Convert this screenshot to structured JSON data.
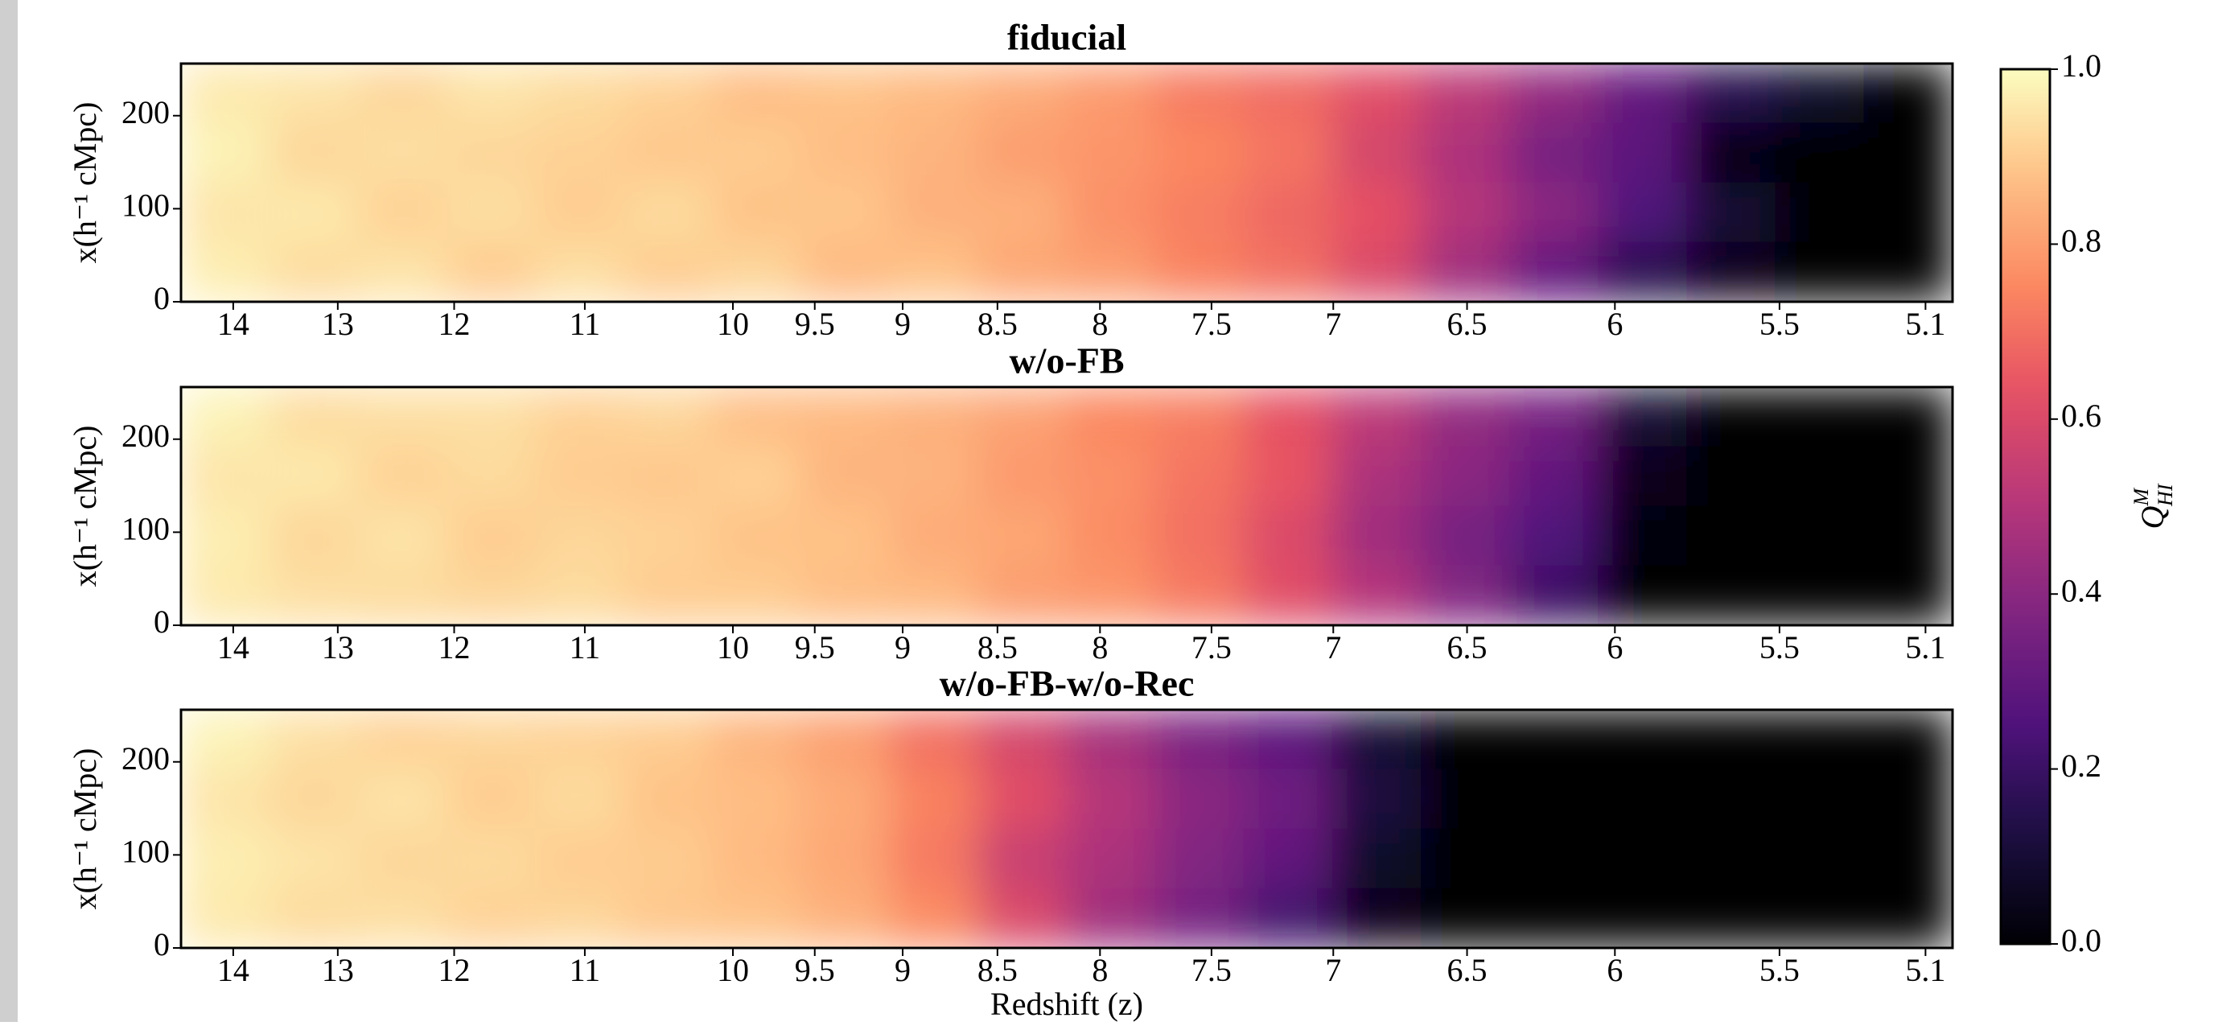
{
  "chart_data": [
    {
      "type": "heatmap",
      "title": "fiducial",
      "ylabel": "x(h⁻¹ cMpc)",
      "colormap": "magma",
      "xscale": "comoving",
      "xlim": [
        14.54,
        5.03
      ],
      "xticks": [
        14,
        13,
        12,
        11,
        10,
        9.5,
        9,
        8.5,
        8,
        7.5,
        7,
        6.5,
        6,
        5.5,
        5.1
      ],
      "ylim": [
        0,
        256
      ],
      "yticks": [
        0,
        100,
        200
      ],
      "values": [
        [
          0.96,
          0.95,
          0.92,
          0.95,
          0.93,
          0.91,
          0.87,
          0.88,
          0.86,
          0.83,
          0.79,
          0.72,
          0.69,
          0.62,
          0.52,
          0.42,
          0.3,
          0.15,
          0.08,
          0
        ],
        [
          0.98,
          0.92,
          0.94,
          0.92,
          0.91,
          0.89,
          0.9,
          0.87,
          0.85,
          0.8,
          0.78,
          0.75,
          0.71,
          0.58,
          0.48,
          0.35,
          0.28,
          0.02,
          0,
          0
        ],
        [
          0.95,
          0.96,
          0.91,
          0.94,
          0.9,
          0.93,
          0.88,
          0.89,
          0.84,
          0.84,
          0.77,
          0.73,
          0.68,
          0.63,
          0.5,
          0.4,
          0.25,
          0.1,
          0,
          0
        ],
        [
          0.97,
          0.93,
          0.95,
          0.9,
          0.94,
          0.9,
          0.92,
          0.86,
          0.88,
          0.82,
          0.8,
          0.74,
          0.7,
          0.6,
          0.45,
          0.3,
          0.15,
          0.05,
          0,
          0
        ]
      ],
      "colorbar": {
        "label": {
          "base": "Q",
          "sup": "M",
          "sub": "HI"
        },
        "lim": [
          0,
          1
        ],
        "ticks": [
          {
            "value": 0,
            "label": "0.0"
          },
          0.2,
          0.4,
          0.6,
          0.8,
          {
            "value": 1,
            "label": "1.0"
          }
        ]
      }
    },
    {
      "type": "heatmap",
      "title": "w/o-FB",
      "ylabel": "x(h⁻¹ cMpc)",
      "colormap": "magma",
      "xscale": "comoving",
      "xlim": [
        14.54,
        5.03
      ],
      "xticks": [
        14,
        13,
        12,
        11,
        10,
        9.5,
        9,
        8.5,
        8,
        7.5,
        7,
        6.5,
        6,
        5.5,
        5.1
      ],
      "ylim": [
        0,
        256
      ],
      "yticks": [
        0,
        100,
        200
      ],
      "values": [
        [
          0.98,
          0.93,
          0.94,
          0.94,
          0.91,
          0.92,
          0.87,
          0.86,
          0.84,
          0.81,
          0.75,
          0.73,
          0.63,
          0.52,
          0.42,
          0.35,
          0.1,
          0,
          0,
          0
        ],
        [
          0.95,
          0.96,
          0.91,
          0.93,
          0.9,
          0.89,
          0.91,
          0.85,
          0.85,
          0.79,
          0.77,
          0.71,
          0.64,
          0.48,
          0.4,
          0.3,
          0.05,
          0,
          0,
          0
        ],
        [
          0.97,
          0.92,
          0.95,
          0.9,
          0.92,
          0.91,
          0.88,
          0.88,
          0.83,
          0.82,
          0.76,
          0.7,
          0.6,
          0.45,
          0.35,
          0.25,
          0.02,
          0,
          0,
          0
        ],
        [
          0.96,
          0.94,
          0.93,
          0.92,
          0.93,
          0.9,
          0.9,
          0.87,
          0.86,
          0.8,
          0.78,
          0.72,
          0.62,
          0.5,
          0.38,
          0.2,
          0,
          0,
          0,
          0
        ]
      ]
    },
    {
      "type": "heatmap",
      "title": "w/o-FB-w/o-Rec",
      "ylabel": "x(h⁻¹ cMpc)",
      "xlabel": "Redshift (z)",
      "colormap": "magma",
      "xscale": "comoving",
      "xlim": [
        14.54,
        5.03
      ],
      "xticks": [
        14,
        13,
        12,
        11,
        10,
        9.5,
        9,
        8.5,
        8,
        7.5,
        7,
        6.5,
        6,
        5.5,
        5.1
      ],
      "ylim": [
        0,
        256
      ],
      "yticks": [
        0,
        100,
        200
      ],
      "values": [
        [
          0.98,
          0.94,
          0.91,
          0.92,
          0.91,
          0.9,
          0.85,
          0.8,
          0.7,
          0.58,
          0.46,
          0.36,
          0.28,
          0.1,
          0,
          0,
          0,
          0,
          0,
          0
        ],
        [
          0.95,
          0.92,
          0.95,
          0.9,
          0.93,
          0.88,
          0.87,
          0.83,
          0.74,
          0.62,
          0.5,
          0.4,
          0.33,
          0.12,
          0,
          0,
          0,
          0,
          0,
          0
        ],
        [
          0.97,
          0.95,
          0.92,
          0.93,
          0.9,
          0.9,
          0.86,
          0.82,
          0.72,
          0.55,
          0.48,
          0.38,
          0.3,
          0.08,
          0,
          0,
          0,
          0,
          0,
          0
        ],
        [
          0.96,
          0.93,
          0.94,
          0.91,
          0.92,
          0.89,
          0.88,
          0.84,
          0.76,
          0.6,
          0.45,
          0.35,
          0.22,
          0.05,
          0,
          0,
          0,
          0,
          0,
          0
        ]
      ]
    }
  ]
}
